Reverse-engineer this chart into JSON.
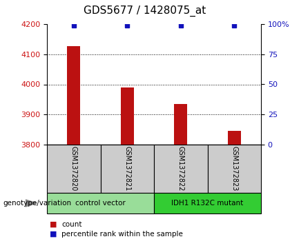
{
  "title": "GDS5677 / 1428075_at",
  "samples": [
    "GSM1372820",
    "GSM1372821",
    "GSM1372822",
    "GSM1372823"
  ],
  "counts": [
    4128,
    3990,
    3935,
    3845
  ],
  "percentile_ranks": [
    99,
    99,
    99,
    99
  ],
  "ylim_left": [
    3800,
    4200
  ],
  "yticks_left": [
    3800,
    3900,
    4000,
    4100,
    4200
  ],
  "ylim_right": [
    0,
    100
  ],
  "yticks_right": [
    0,
    25,
    50,
    75,
    100
  ],
  "yticklabels_right": [
    "0",
    "25",
    "50",
    "75",
    "100%"
  ],
  "bar_color": "#bb1111",
  "dot_color": "#1111bb",
  "groups": [
    {
      "label": "control vector",
      "samples": [
        0,
        1
      ],
      "color": "#99dd99"
    },
    {
      "label": "IDH1 R132C mutant",
      "samples": [
        2,
        3
      ],
      "color": "#33cc33"
    }
  ],
  "group_label": "genotype/variation",
  "legend_count_label": "count",
  "legend_pct_label": "percentile rank within the sample",
  "label_color_left": "#cc1111",
  "label_color_right": "#1111bb",
  "grid_color": "#000000",
  "plot_bg": "#ffffff",
  "sample_bg": "#cccccc",
  "bar_width": 0.25,
  "title_fontsize": 11,
  "tick_fontsize": 8,
  "label_fontsize": 8
}
